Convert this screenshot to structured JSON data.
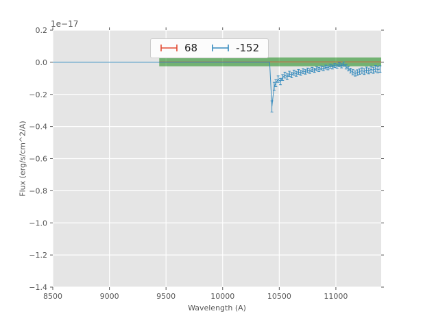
{
  "chart_data": {
    "type": "line",
    "offset_label": "1e−17",
    "xlabel": "Wavelength (A)",
    "ylabel": "Flux (erg/s/cm^2/A)",
    "xlim": [
      8500,
      11400
    ],
    "ylim": [
      -1.4,
      0.2
    ],
    "xticks": [
      8500,
      9000,
      9500,
      10000,
      10500,
      11000
    ],
    "yticks": [
      0.2,
      0.0,
      -0.2,
      -0.4,
      -0.6,
      -0.8,
      -1.0,
      -1.2,
      -1.4
    ],
    "grid": true,
    "colors": {
      "plot_bg": "#E5E5E5",
      "grid": "#FFFFFF",
      "text": "#555555",
      "tick": "#555555"
    },
    "band": {
      "x0": 9440,
      "x1": 11400,
      "y0": -0.025,
      "y1": 0.03,
      "color": "rgba(0,128,0,0.5)"
    },
    "legend": {
      "position": "upper center",
      "entries": [
        {
          "label": "68",
          "color": "#E24A33",
          "icon": "errorbar-icon"
        },
        {
          "label": "-152",
          "color": "#348ABD",
          "icon": "errorbar-icon"
        }
      ]
    },
    "series": [
      {
        "name": "68",
        "color": "#E24A33",
        "x": [
          9440,
          11400
        ],
        "y": [
          0.002,
          0.002
        ],
        "err": [
          0,
          0
        ]
      },
      {
        "name": "-152",
        "color": "#348ABD",
        "x": [
          8500,
          10415,
          10435,
          10455,
          10470,
          10490,
          10510,
          10530,
          10550,
          10570,
          10590,
          10610,
          10630,
          10650,
          10670,
          10690,
          10710,
          10730,
          10750,
          10770,
          10790,
          10810,
          10830,
          10850,
          10870,
          10890,
          10910,
          10930,
          10950,
          10970,
          10990,
          11010,
          11030,
          11050,
          11070,
          11090,
          11110,
          11130,
          11150,
          11170,
          11190,
          11210,
          11230,
          11250,
          11270,
          11290,
          11310,
          11330,
          11350,
          11370,
          11390
        ],
        "y": [
          0,
          0,
          -0.275,
          -0.15,
          -0.13,
          -0.105,
          -0.12,
          -0.095,
          -0.08,
          -0.09,
          -0.072,
          -0.08,
          -0.065,
          -0.072,
          -0.06,
          -0.066,
          -0.055,
          -0.06,
          -0.05,
          -0.055,
          -0.045,
          -0.05,
          -0.04,
          -0.045,
          -0.035,
          -0.04,
          -0.03,
          -0.035,
          -0.025,
          -0.03,
          -0.02,
          -0.025,
          -0.015,
          -0.022,
          -0.012,
          -0.028,
          -0.04,
          -0.052,
          -0.062,
          -0.07,
          -0.064,
          -0.058,
          -0.052,
          -0.058,
          -0.048,
          -0.054,
          -0.044,
          -0.05,
          -0.04,
          -0.046,
          -0.042
        ],
        "err": [
          0,
          0,
          0.035,
          0.025,
          0.022,
          0.02,
          0.02,
          0.018,
          0.018,
          0.018,
          0.016,
          0.016,
          0.016,
          0.015,
          0.015,
          0.015,
          0.015,
          0.014,
          0.014,
          0.014,
          0.013,
          0.013,
          0.013,
          0.013,
          0.012,
          0.012,
          0.012,
          0.012,
          0.012,
          0.012,
          0.012,
          0.012,
          0.012,
          0.013,
          0.013,
          0.014,
          0.014,
          0.015,
          0.016,
          0.016,
          0.017,
          0.017,
          0.017,
          0.018,
          0.018,
          0.018,
          0.019,
          0.019,
          0.02,
          0.02,
          0.02
        ]
      }
    ]
  }
}
